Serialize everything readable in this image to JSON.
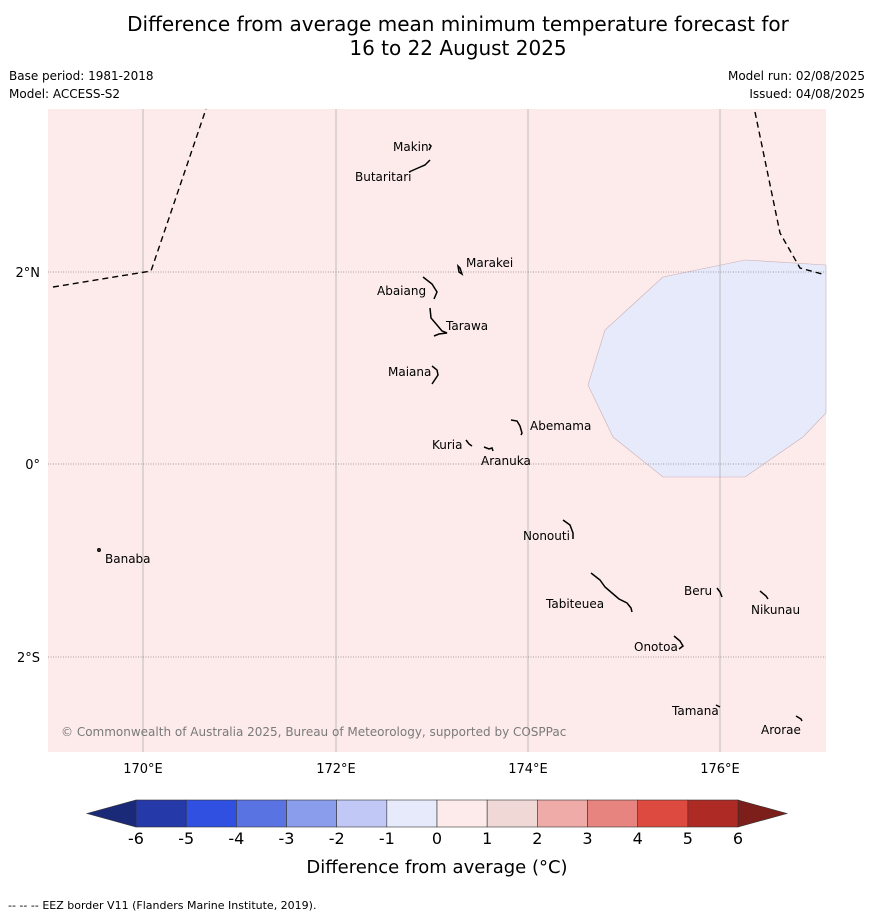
{
  "header": {
    "title_line1": "Difference from average mean minimum temperature forecast for",
    "title_line2": "16 to 22 August 2025",
    "base_period": "Base period: 1981-2018",
    "model": "Model: ACCESS-S2",
    "model_run": "Model run: 02/08/2025",
    "issued": "Issued: 04/08/2025"
  },
  "map": {
    "lon_range": [
      169,
      177.1
    ],
    "lat_range": [
      -3.0,
      3.35
    ],
    "longitude_labels": [
      "170°E",
      "172°E",
      "174°E",
      "176°E"
    ],
    "latitude_labels": [
      "2°N",
      "0°",
      "2°S"
    ],
    "gridlines": true,
    "background_category": "0 to 1",
    "background_color": "#fcebea",
    "anomaly_region_category": "-1 to 0",
    "anomaly_region_color": "#e7eafa",
    "places": [
      {
        "name": "Makin",
        "lon": 173.0,
        "lat": 3.35
      },
      {
        "name": "Butaritari",
        "lon": 172.8,
        "lat": 3.1
      },
      {
        "name": "Marakei",
        "lon": 173.3,
        "lat": 2.0
      },
      {
        "name": "Abaiang",
        "lon": 172.9,
        "lat": 1.85
      },
      {
        "name": "Tarawa",
        "lon": 173.0,
        "lat": 1.4
      },
      {
        "name": "Maiana",
        "lon": 173.0,
        "lat": 0.93
      },
      {
        "name": "Abemama",
        "lon": 173.85,
        "lat": 0.4
      },
      {
        "name": "Kuria",
        "lon": 173.4,
        "lat": 0.22
      },
      {
        "name": "Aranuka",
        "lon": 173.6,
        "lat": 0.16
      },
      {
        "name": "Nonouti",
        "lon": 174.4,
        "lat": -0.65
      },
      {
        "name": "Banaba",
        "lon": 169.53,
        "lat": -0.88
      },
      {
        "name": "Tabiteuea",
        "lon": 174.8,
        "lat": -1.3
      },
      {
        "name": "Beru",
        "lon": 176.0,
        "lat": -1.33
      },
      {
        "name": "Nikunau",
        "lon": 176.45,
        "lat": -1.35
      },
      {
        "name": "Onotoa",
        "lon": 175.55,
        "lat": -1.85
      },
      {
        "name": "Tamana",
        "lon": 175.98,
        "lat": -2.5
      },
      {
        "name": "Arorae",
        "lon": 176.82,
        "lat": -2.65
      }
    ],
    "credit": "© Commonwealth of Australia 2025, Bureau of Meteorology, supported by COSPPac"
  },
  "colorbar": {
    "label": "Difference from average (°C)",
    "ticks": [
      "-6",
      "-5",
      "-4",
      "-3",
      "-2",
      "-1",
      "0",
      "1",
      "2",
      "3",
      "4",
      "5",
      "6"
    ],
    "colors": [
      "#2639a8",
      "#3050e1",
      "#5a73e3",
      "#8a9cec",
      "#c1c8f5",
      "#e7eafa",
      "#fcebea",
      "#efd8d6",
      "#eeaba8",
      "#e8847f",
      "#dd4a40",
      "#ad2a25"
    ],
    "under_color": "#1b2a78",
    "over_color": "#7c1f1a"
  },
  "footer": {
    "legend_symbol": "--  --  --",
    "text": "EEZ border V11 (Flanders Marine Institute, 2019)."
  }
}
